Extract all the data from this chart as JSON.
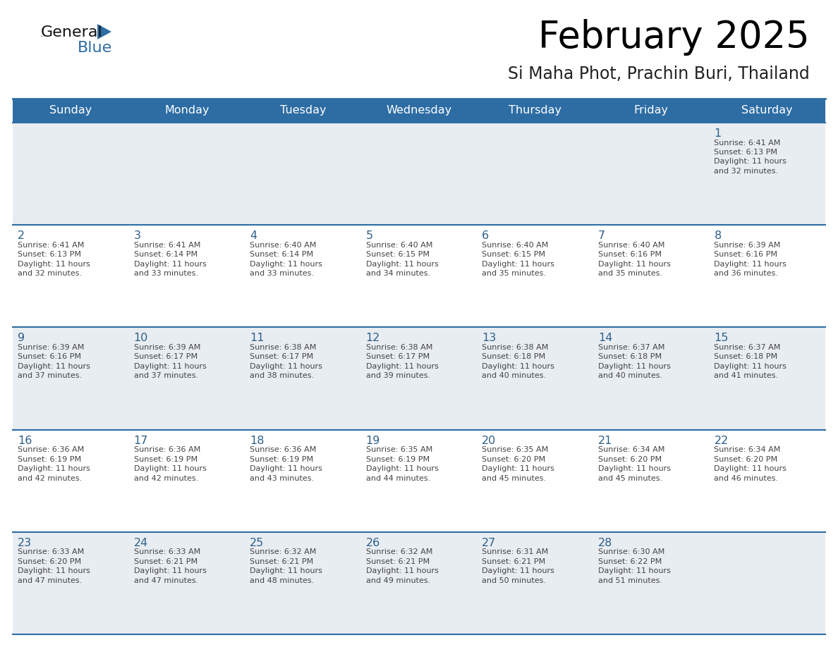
{
  "title": "February 2025",
  "subtitle": "Si Maha Phot, Prachin Buri, Thailand",
  "header_color": "#2e6da4",
  "header_text_color": "#ffffff",
  "days_of_week": [
    "Sunday",
    "Monday",
    "Tuesday",
    "Wednesday",
    "Thursday",
    "Friday",
    "Saturday"
  ],
  "cell_bg_white": "#ffffff",
  "cell_bg_gray": "#e8edf2",
  "border_color": "#2e6da4",
  "day_number_color": "#2e5f8a",
  "text_color": "#444444",
  "subtitle_color": "#222222",
  "logo_general_color": "#111111",
  "logo_blue_color": "#2e6da4",
  "logo_triangle_color": "#2e6da4",
  "calendar_data": [
    [
      {
        "day": null,
        "sunrise": null,
        "sunset": null,
        "daylight_h": null,
        "daylight_m": null
      },
      {
        "day": null,
        "sunrise": null,
        "sunset": null,
        "daylight_h": null,
        "daylight_m": null
      },
      {
        "day": null,
        "sunrise": null,
        "sunset": null,
        "daylight_h": null,
        "daylight_m": null
      },
      {
        "day": null,
        "sunrise": null,
        "sunset": null,
        "daylight_h": null,
        "daylight_m": null
      },
      {
        "day": null,
        "sunrise": null,
        "sunset": null,
        "daylight_h": null,
        "daylight_m": null
      },
      {
        "day": null,
        "sunrise": null,
        "sunset": null,
        "daylight_h": null,
        "daylight_m": null
      },
      {
        "day": 1,
        "sunrise": "6:41 AM",
        "sunset": "6:13 PM",
        "daylight_h": "11 hours",
        "daylight_m": "and 32 minutes."
      }
    ],
    [
      {
        "day": 2,
        "sunrise": "6:41 AM",
        "sunset": "6:13 PM",
        "daylight_h": "11 hours",
        "daylight_m": "and 32 minutes."
      },
      {
        "day": 3,
        "sunrise": "6:41 AM",
        "sunset": "6:14 PM",
        "daylight_h": "11 hours",
        "daylight_m": "and 33 minutes."
      },
      {
        "day": 4,
        "sunrise": "6:40 AM",
        "sunset": "6:14 PM",
        "daylight_h": "11 hours",
        "daylight_m": "and 33 minutes."
      },
      {
        "day": 5,
        "sunrise": "6:40 AM",
        "sunset": "6:15 PM",
        "daylight_h": "11 hours",
        "daylight_m": "and 34 minutes."
      },
      {
        "day": 6,
        "sunrise": "6:40 AM",
        "sunset": "6:15 PM",
        "daylight_h": "11 hours",
        "daylight_m": "and 35 minutes."
      },
      {
        "day": 7,
        "sunrise": "6:40 AM",
        "sunset": "6:16 PM",
        "daylight_h": "11 hours",
        "daylight_m": "and 35 minutes."
      },
      {
        "day": 8,
        "sunrise": "6:39 AM",
        "sunset": "6:16 PM",
        "daylight_h": "11 hours",
        "daylight_m": "and 36 minutes."
      }
    ],
    [
      {
        "day": 9,
        "sunrise": "6:39 AM",
        "sunset": "6:16 PM",
        "daylight_h": "11 hours",
        "daylight_m": "and 37 minutes."
      },
      {
        "day": 10,
        "sunrise": "6:39 AM",
        "sunset": "6:17 PM",
        "daylight_h": "11 hours",
        "daylight_m": "and 37 minutes."
      },
      {
        "day": 11,
        "sunrise": "6:38 AM",
        "sunset": "6:17 PM",
        "daylight_h": "11 hours",
        "daylight_m": "and 38 minutes."
      },
      {
        "day": 12,
        "sunrise": "6:38 AM",
        "sunset": "6:17 PM",
        "daylight_h": "11 hours",
        "daylight_m": "and 39 minutes."
      },
      {
        "day": 13,
        "sunrise": "6:38 AM",
        "sunset": "6:18 PM",
        "daylight_h": "11 hours",
        "daylight_m": "and 40 minutes."
      },
      {
        "day": 14,
        "sunrise": "6:37 AM",
        "sunset": "6:18 PM",
        "daylight_h": "11 hours",
        "daylight_m": "and 40 minutes."
      },
      {
        "day": 15,
        "sunrise": "6:37 AM",
        "sunset": "6:18 PM",
        "daylight_h": "11 hours",
        "daylight_m": "and 41 minutes."
      }
    ],
    [
      {
        "day": 16,
        "sunrise": "6:36 AM",
        "sunset": "6:19 PM",
        "daylight_h": "11 hours",
        "daylight_m": "and 42 minutes."
      },
      {
        "day": 17,
        "sunrise": "6:36 AM",
        "sunset": "6:19 PM",
        "daylight_h": "11 hours",
        "daylight_m": "and 42 minutes."
      },
      {
        "day": 18,
        "sunrise": "6:36 AM",
        "sunset": "6:19 PM",
        "daylight_h": "11 hours",
        "daylight_m": "and 43 minutes."
      },
      {
        "day": 19,
        "sunrise": "6:35 AM",
        "sunset": "6:19 PM",
        "daylight_h": "11 hours",
        "daylight_m": "and 44 minutes."
      },
      {
        "day": 20,
        "sunrise": "6:35 AM",
        "sunset": "6:20 PM",
        "daylight_h": "11 hours",
        "daylight_m": "and 45 minutes."
      },
      {
        "day": 21,
        "sunrise": "6:34 AM",
        "sunset": "6:20 PM",
        "daylight_h": "11 hours",
        "daylight_m": "and 45 minutes."
      },
      {
        "day": 22,
        "sunrise": "6:34 AM",
        "sunset": "6:20 PM",
        "daylight_h": "11 hours",
        "daylight_m": "and 46 minutes."
      }
    ],
    [
      {
        "day": 23,
        "sunrise": "6:33 AM",
        "sunset": "6:20 PM",
        "daylight_h": "11 hours",
        "daylight_m": "and 47 minutes."
      },
      {
        "day": 24,
        "sunrise": "6:33 AM",
        "sunset": "6:21 PM",
        "daylight_h": "11 hours",
        "daylight_m": "and 47 minutes."
      },
      {
        "day": 25,
        "sunrise": "6:32 AM",
        "sunset": "6:21 PM",
        "daylight_h": "11 hours",
        "daylight_m": "and 48 minutes."
      },
      {
        "day": 26,
        "sunrise": "6:32 AM",
        "sunset": "6:21 PM",
        "daylight_h": "11 hours",
        "daylight_m": "and 49 minutes."
      },
      {
        "day": 27,
        "sunrise": "6:31 AM",
        "sunset": "6:21 PM",
        "daylight_h": "11 hours",
        "daylight_m": "and 50 minutes."
      },
      {
        "day": 28,
        "sunrise": "6:30 AM",
        "sunset": "6:22 PM",
        "daylight_h": "11 hours",
        "daylight_m": "and 51 minutes."
      },
      {
        "day": null,
        "sunrise": null,
        "sunset": null,
        "daylight_h": null,
        "daylight_m": null
      }
    ]
  ]
}
